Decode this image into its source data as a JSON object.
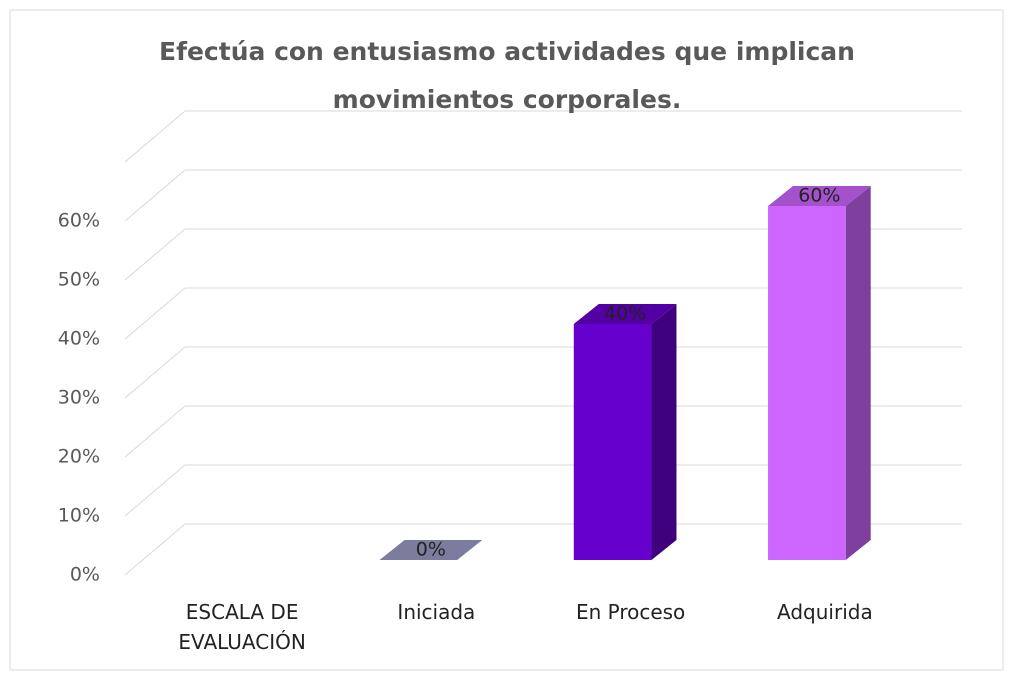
{
  "chart_data": {
    "type": "bar3d",
    "title": "Efectúa con entusiasmo actividades que implican movimientos corporales.",
    "categories": [
      "ESCALA DE EVALUACIÓN",
      "Iniciada",
      "En Proceso",
      "Adquirida"
    ],
    "values": [
      null,
      0,
      40,
      60
    ],
    "value_labels": [
      null,
      "0%",
      "40%",
      "60%"
    ],
    "colors": [
      null,
      "#9b9bc6",
      "#6600cc",
      "#cc66ff"
    ],
    "ylim": [
      0,
      70
    ],
    "yticks": [
      {
        "value": 0,
        "label": "0%"
      },
      {
        "value": 10,
        "label": "10%"
      },
      {
        "value": 20,
        "label": "20%"
      },
      {
        "value": 30,
        "label": "30%"
      },
      {
        "value": 40,
        "label": "40%"
      },
      {
        "value": 50,
        "label": "50%"
      },
      {
        "value": 60,
        "label": "60%"
      }
    ],
    "grid": true
  }
}
